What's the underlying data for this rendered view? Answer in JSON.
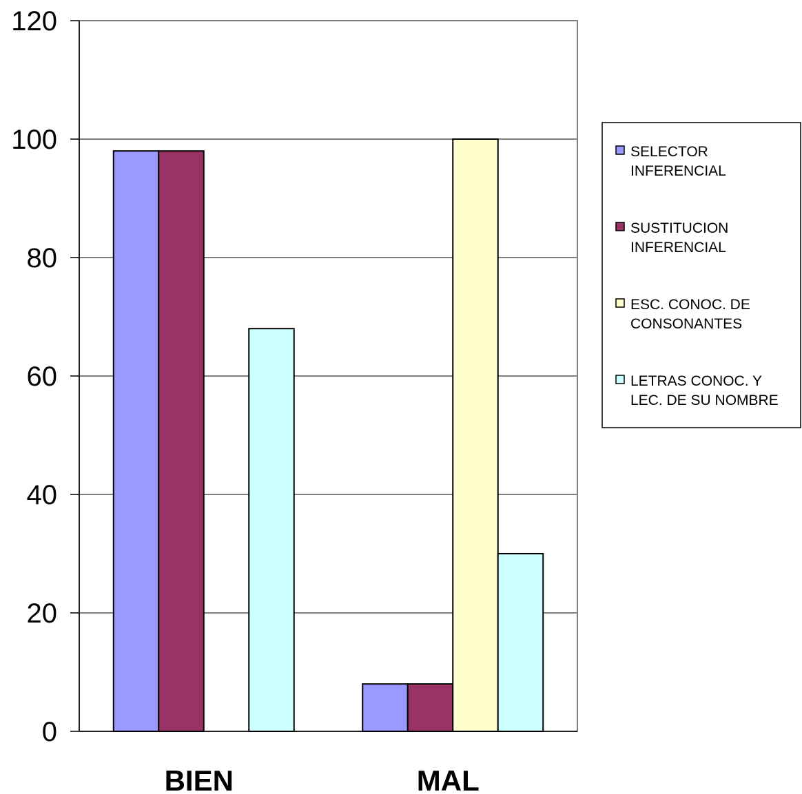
{
  "chart_data": {
    "type": "bar",
    "title": "",
    "xlabel": "",
    "ylabel": "",
    "categories": [
      "BIEN",
      "MAL"
    ],
    "ylim": [
      0,
      120
    ],
    "yticks": [
      0,
      20,
      40,
      60,
      80,
      100,
      120
    ],
    "grid": true,
    "legend_position": "right",
    "series": [
      {
        "name": "SELECTOR INFERENCIAL",
        "legend_lines": [
          "SELECTOR",
          "INFERENCIAL"
        ],
        "color": "#9999ff",
        "values": [
          98,
          8
        ]
      },
      {
        "name": "SUSTITUCION INFERENCIAL",
        "legend_lines": [
          "SUSTITUCION",
          "INFERENCIAL"
        ],
        "color": "#993366",
        "values": [
          98,
          8
        ]
      },
      {
        "name": "ESC. CONOC. DE CONSONANTES",
        "legend_lines": [
          "ESC. CONOC. DE",
          "CONSONANTES"
        ],
        "color": "#ffffcc",
        "values": [
          0,
          100
        ]
      },
      {
        "name": "LETRAS CONOC. Y LEC. DE SU NOMBRE",
        "legend_lines": [
          "LETRAS CONOC. Y",
          "LEC. DE SU NOMBRE"
        ],
        "color": "#ccffff",
        "values": [
          68,
          30
        ]
      }
    ]
  }
}
